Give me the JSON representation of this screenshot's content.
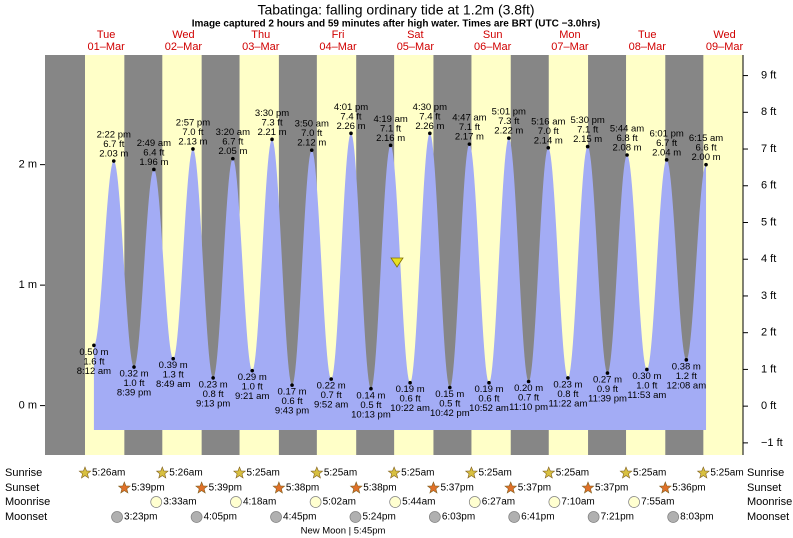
{
  "chart_data": {
    "type": "tide",
    "title": "Tabatinga: falling  ordinary tide at 1.2m (3.8ft)",
    "subtitle": "Image captured 2 hours and 59 minutes after high water. Times are BRT (UTC −3.0hrs)",
    "ylim": [
      -0.41,
      2.91
    ],
    "yticks": [
      {
        "value": 0,
        "label": "0 m"
      },
      {
        "value": 1,
        "label": "1 m"
      },
      {
        "value": 2,
        "label": "2 m"
      }
    ],
    "y2lim": [
      -1.33,
      9.56
    ],
    "y2ticks": [
      {
        "value": -1,
        "label": "−1 ft"
      },
      {
        "value": 0,
        "label": "0 ft"
      },
      {
        "value": 1,
        "label": "1 ft"
      },
      {
        "value": 2,
        "label": "2 ft"
      },
      {
        "value": 3,
        "label": "3 ft"
      },
      {
        "value": 4,
        "label": "4 ft"
      },
      {
        "value": 5,
        "label": "5 ft"
      },
      {
        "value": 6,
        "label": "6 ft"
      },
      {
        "value": 7,
        "label": "7 ft"
      },
      {
        "value": 8,
        "label": "8 ft"
      },
      {
        "value": 9,
        "label": "9 ft"
      }
    ],
    "row_labels": [
      "Sunrise",
      "Sunset",
      "Moonrise",
      "Moonset"
    ],
    "moon_phase": "New Moon | 5:45pm",
    "colors": {
      "night": "#868686",
      "day": "#ffffc8",
      "water": "#a3acf5",
      "text_day": "#d00000"
    },
    "days": [
      {
        "weekday": "Tue",
        "date": "01–Mar",
        "sunrise": "5:26am",
        "sunset": "5:39pm",
        "moonrise": null,
        "moonset": "3:23pm",
        "tides": [
          {
            "time": "8:12 am",
            "height": 0.5,
            "label_m": "0.50 m",
            "label_ft": "1.6 ft"
          },
          {
            "time": "2:22 pm",
            "height": 2.03,
            "label_m": "2.03 m",
            "label_ft": "6.7 ft"
          },
          {
            "time": "8:39 pm",
            "height": 0.32,
            "label_m": "0.32 m",
            "label_ft": "1.0 ft"
          }
        ]
      },
      {
        "weekday": "Wed",
        "date": "02–Mar",
        "sunrise": "5:26am",
        "sunset": "5:39pm",
        "moonrise": "3:33am",
        "moonset": "4:05pm",
        "tides": [
          {
            "time": "2:49 am",
            "height": 1.96,
            "label_m": "1.96 m",
            "label_ft": "6.4 ft"
          },
          {
            "time": "8:49 am",
            "height": 0.39,
            "label_m": "0.39 m",
            "label_ft": "1.3 ft"
          },
          {
            "time": "2:57 pm",
            "height": 2.13,
            "label_m": "2.13 m",
            "label_ft": "7.0 ft"
          },
          {
            "time": "9:13 pm",
            "height": 0.23,
            "label_m": "0.23 m",
            "label_ft": "0.8 ft"
          }
        ]
      },
      {
        "weekday": "Thu",
        "date": "03–Mar",
        "sunrise": "5:25am",
        "sunset": "5:38pm",
        "moonrise": "4:18am",
        "moonset": "4:45pm",
        "tides": [
          {
            "time": "3:20 am",
            "height": 2.05,
            "label_m": "2.05 m",
            "label_ft": "6.7 ft"
          },
          {
            "time": "9:21 am",
            "height": 0.29,
            "label_m": "0.29 m",
            "label_ft": "1.0 ft"
          },
          {
            "time": "3:30 pm",
            "height": 2.21,
            "label_m": "2.21 m",
            "label_ft": "7.3 ft"
          },
          {
            "time": "9:43 pm",
            "height": 0.17,
            "label_m": "0.17 m",
            "label_ft": "0.6 ft"
          }
        ]
      },
      {
        "weekday": "Fri",
        "date": "04–Mar",
        "sunrise": "5:25am",
        "sunset": "5:38pm",
        "moonrise": "5:02am",
        "moonset": "5:24pm",
        "tides": [
          {
            "time": "3:50 am",
            "height": 2.12,
            "label_m": "2.12 m",
            "label_ft": "7.0 ft"
          },
          {
            "time": "9:52 am",
            "height": 0.22,
            "label_m": "0.22 m",
            "label_ft": "0.7 ft"
          },
          {
            "time": "4:01 pm",
            "height": 2.26,
            "label_m": "2.26 m",
            "label_ft": "7.4 ft"
          },
          {
            "time": "10:13 pm",
            "height": 0.14,
            "label_m": "0.14 m",
            "label_ft": "0.5 ft"
          }
        ]
      },
      {
        "weekday": "Sat",
        "date": "05–Mar",
        "sunrise": "5:25am",
        "sunset": "5:37pm",
        "moonrise": "5:44am",
        "moonset": "6:03pm",
        "tides": [
          {
            "time": "4:19 am",
            "height": 2.16,
            "label_m": "2.16 m",
            "label_ft": "7.1 ft"
          },
          {
            "time": "10:22 am",
            "height": 0.19,
            "label_m": "0.19 m",
            "label_ft": "0.6 ft"
          },
          {
            "time": "4:30 pm",
            "height": 2.26,
            "label_m": "2.26 m",
            "label_ft": "7.4 ft"
          },
          {
            "time": "10:42 pm",
            "height": 0.15,
            "label_m": "0.15 m",
            "label_ft": "0.5 ft"
          }
        ]
      },
      {
        "weekday": "Sun",
        "date": "06–Mar",
        "sunrise": "5:25am",
        "sunset": "5:37pm",
        "moonrise": "6:27am",
        "moonset": "6:41pm",
        "tides": [
          {
            "time": "4:47 am",
            "height": 2.17,
            "label_m": "2.17 m",
            "label_ft": "7.1 ft"
          },
          {
            "time": "10:52 am",
            "height": 0.19,
            "label_m": "0.19 m",
            "label_ft": "0.6 ft"
          },
          {
            "time": "5:01 pm",
            "height": 2.22,
            "label_m": "2.22 m",
            "label_ft": "7.3 ft"
          },
          {
            "time": "11:10 pm",
            "height": 0.2,
            "label_m": "0.20 m",
            "label_ft": "0.7 ft"
          }
        ]
      },
      {
        "weekday": "Mon",
        "date": "07–Mar",
        "sunrise": "5:25am",
        "sunset": "5:37pm",
        "moonrise": "7:10am",
        "moonset": "7:21pm",
        "tides": [
          {
            "time": "5:16 am",
            "height": 2.14,
            "label_m": "2.14 m",
            "label_ft": "7.0 ft"
          },
          {
            "time": "11:22 am",
            "height": 0.23,
            "label_m": "0.23 m",
            "label_ft": "0.8 ft"
          },
          {
            "time": "5:30 pm",
            "height": 2.15,
            "label_m": "2.15 m",
            "label_ft": "7.1 ft"
          },
          {
            "time": "11:39 pm",
            "height": 0.27,
            "label_m": "0.27 m",
            "label_ft": "0.9 ft"
          }
        ]
      },
      {
        "weekday": "Tue",
        "date": "08–Mar",
        "sunrise": "5:25am",
        "sunset": "5:36pm",
        "moonrise": "7:55am",
        "moonset": "8:03pm",
        "tides": [
          {
            "time": "5:44 am",
            "height": 2.08,
            "label_m": "2.08 m",
            "label_ft": "6.8 ft"
          },
          {
            "time": "11:53 am",
            "height": 0.3,
            "label_m": "0.30 m",
            "label_ft": "1.0 ft"
          },
          {
            "time": "6:01 pm",
            "height": 2.04,
            "label_m": "2.04 m",
            "label_ft": "6.7 ft"
          }
        ]
      },
      {
        "weekday": "Wed",
        "date": "09–Mar",
        "sunrise": "5:25am",
        "sunset": null,
        "moonrise": null,
        "moonset": null,
        "tides": [
          {
            "time": "12:08 am",
            "height": 0.38,
            "label_m": "0.38 m",
            "label_ft": "1.2 ft"
          },
          {
            "time": "6:15 am",
            "height": 2.0,
            "label_m": "2.00 m",
            "label_ft": "6.6 ft"
          }
        ]
      }
    ]
  }
}
